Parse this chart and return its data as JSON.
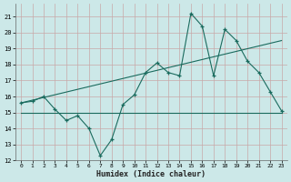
{
  "xlabel": "Humidex (Indice chaleur)",
  "ylabel": "",
  "xlim": [
    -0.5,
    23.5
  ],
  "ylim": [
    12,
    21.8
  ],
  "yticks": [
    12,
    13,
    14,
    15,
    16,
    17,
    18,
    19,
    20,
    21
  ],
  "xticks": [
    0,
    1,
    2,
    3,
    4,
    5,
    6,
    7,
    8,
    9,
    10,
    11,
    12,
    13,
    14,
    15,
    16,
    17,
    18,
    19,
    20,
    21,
    22,
    23
  ],
  "bg_color": "#cce8e8",
  "line_color": "#1a6b5e",
  "line1_x": [
    0,
    1,
    2,
    3,
    4,
    5,
    6,
    7,
    8,
    9,
    10,
    11,
    12,
    13,
    14,
    15,
    16,
    17,
    18,
    19,
    20,
    21,
    22,
    23
  ],
  "line1_y": [
    15.6,
    15.7,
    16.0,
    15.2,
    14.5,
    14.8,
    14.0,
    12.3,
    13.3,
    15.5,
    16.1,
    17.5,
    18.1,
    17.5,
    17.3,
    21.2,
    20.4,
    17.3,
    20.2,
    19.5,
    18.2,
    17.5,
    16.3,
    15.1
  ],
  "line2_x": [
    0,
    23
  ],
  "line2_y": [
    15.6,
    19.5
  ],
  "line3_x": [
    0,
    23
  ],
  "line3_y": [
    15.0,
    15.0
  ]
}
